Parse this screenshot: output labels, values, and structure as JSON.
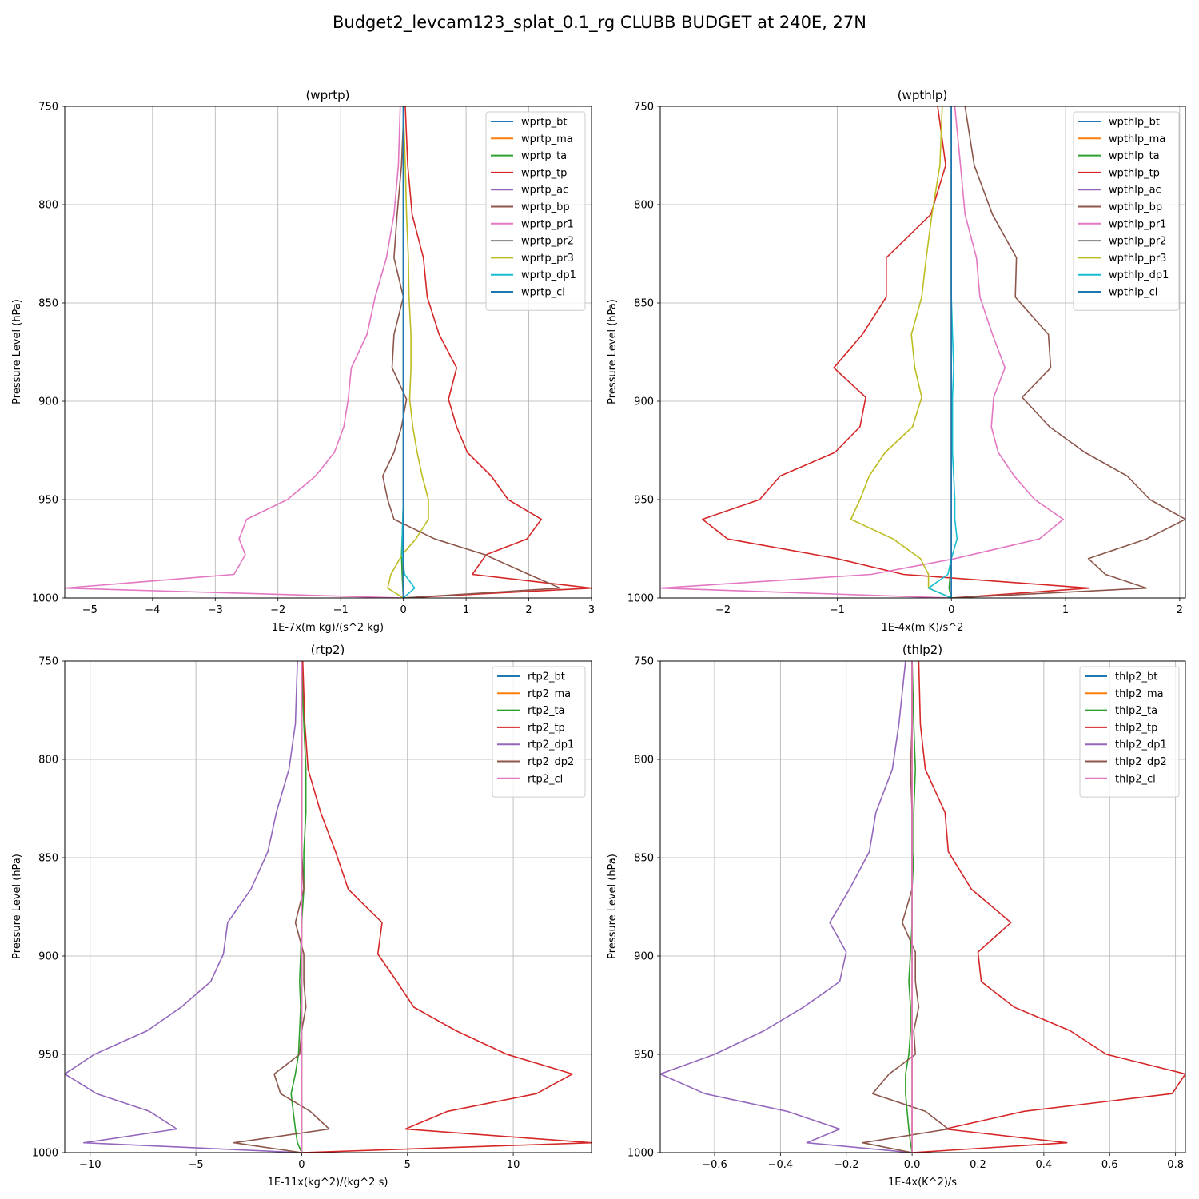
{
  "figure": {
    "title": "Budget2_levcam123_splat_0.1_rg CLUBB BUDGET at 240E, 27N"
  },
  "chart_data": [
    {
      "type": "line",
      "title": "(wprtp)",
      "xlabel": "1E-7x(m kg)/(s^2 kg)",
      "ylabel": "Pressure Level (hPa)",
      "xlim": [
        -5.4,
        3.0
      ],
      "ylim": [
        1000,
        750
      ],
      "xticks": [
        -5,
        -4,
        -3,
        -2,
        -1,
        0,
        1,
        2,
        3
      ],
      "xtick_labels": [
        "−5",
        "−4",
        "−3",
        "−2",
        "−1",
        "0",
        "1",
        "2",
        "3"
      ],
      "yticks": [
        750,
        800,
        850,
        900,
        950,
        1000
      ],
      "ytick_labels": [
        "750",
        "800",
        "850",
        "900",
        "950",
        "1000"
      ],
      "grid": true,
      "legend_loc": "upper right",
      "pressure_levels": [
        750,
        780,
        805,
        827,
        847,
        866,
        883,
        899,
        913,
        926,
        938,
        950,
        960,
        970,
        978,
        988,
        995,
        1000
      ],
      "series": [
        {
          "name": "wprtp_bt",
          "color": "#1f77b4",
          "values": [
            0,
            0,
            0,
            0,
            0,
            0,
            0,
            0,
            0,
            0,
            0,
            0,
            0,
            0,
            0,
            0,
            0,
            0
          ]
        },
        {
          "name": "wprtp_ma",
          "color": "#ff7f0e",
          "values": [
            0,
            0,
            0,
            0,
            0,
            0,
            0,
            0,
            0,
            0,
            0,
            0,
            0,
            0,
            0,
            0,
            0,
            0
          ]
        },
        {
          "name": "wprtp_ta",
          "color": "#2ca02c",
          "values": [
            0,
            0,
            0,
            0,
            0,
            0,
            0,
            0,
            0,
            0,
            0,
            0,
            -0.01,
            -0.02,
            -0.03,
            -0.02,
            -0.01,
            0
          ]
        },
        {
          "name": "wprtp_tp",
          "color": "#d62728",
          "values": [
            0.03,
            0.07,
            0.14,
            0.32,
            0.38,
            0.57,
            0.85,
            0.72,
            0.85,
            1.02,
            1.4,
            1.67,
            2.2,
            1.97,
            1.32,
            1.1,
            3.0,
            0
          ]
        },
        {
          "name": "wprtp_ac",
          "color": "#9467bd",
          "values": [
            0,
            0,
            0,
            0,
            0,
            0,
            0,
            0,
            0,
            0,
            0,
            0,
            0,
            0,
            0,
            0,
            0,
            0
          ]
        },
        {
          "name": "wprtp_bp",
          "color": "#8c564b",
          "values": [
            0.01,
            -0.03,
            -0.1,
            -0.15,
            0,
            -0.15,
            -0.18,
            0.05,
            -0.03,
            -0.15,
            -0.33,
            -0.25,
            -0.15,
            0.5,
            1.3,
            2.0,
            2.5,
            0
          ]
        },
        {
          "name": "wprtp_pr1",
          "color": "#e377c2",
          "values": [
            -0.05,
            -0.08,
            -0.15,
            -0.27,
            -0.45,
            -0.58,
            -0.83,
            -0.88,
            -0.95,
            -1.1,
            -1.4,
            -1.85,
            -2.5,
            -2.62,
            -2.52,
            -2.7,
            -5.4,
            0
          ]
        },
        {
          "name": "wprtp_pr2",
          "color": "#7f7f7f",
          "values": [
            0,
            0,
            0,
            0,
            0,
            0,
            0,
            0,
            0,
            0,
            0,
            0,
            0,
            0,
            0,
            0,
            0,
            0
          ]
        },
        {
          "name": "wprtp_pr3",
          "color": "#bcbd22",
          "values": [
            0,
            0.03,
            0.05,
            0.08,
            0.09,
            0.12,
            0.12,
            0.1,
            0.15,
            0.22,
            0.3,
            0.4,
            0.4,
            0.2,
            -0.02,
            -0.2,
            -0.25,
            0
          ]
        },
        {
          "name": "wprtp_dp1",
          "color": "#17becf",
          "values": [
            0,
            0,
            0,
            0,
            0,
            0,
            0,
            0,
            0,
            0,
            0,
            0,
            -0.01,
            -0.02,
            -0.02,
            0.02,
            0.18,
            0
          ]
        },
        {
          "name": "wprtp_cl",
          "color": "#1f77b4",
          "values": [
            0,
            0,
            0,
            0,
            0,
            0,
            0,
            0,
            0,
            0,
            0,
            0,
            0,
            0,
            0,
            0,
            0,
            0
          ]
        }
      ]
    },
    {
      "type": "line",
      "title": "(wpthlp)",
      "xlabel": "1E-4x(m K)/s^2",
      "ylabel": "Pressure Level (hPa)",
      "xlim": [
        -2.55,
        2.05
      ],
      "ylim": [
        1000,
        750
      ],
      "xticks": [
        -2,
        -1,
        0,
        1,
        2
      ],
      "xtick_labels": [
        "−2",
        "−1",
        "0",
        "1",
        "2"
      ],
      "yticks": [
        750,
        800,
        850,
        900,
        950,
        1000
      ],
      "ytick_labels": [
        "750",
        "800",
        "850",
        "900",
        "950",
        "1000"
      ],
      "grid": true,
      "legend_loc": "upper right",
      "pressure_levels": [
        750,
        780,
        805,
        827,
        847,
        866,
        883,
        898,
        913,
        926,
        938,
        950,
        960,
        970,
        980,
        988,
        995,
        1000
      ],
      "series": [
        {
          "name": "wpthlp_bt",
          "color": "#1f77b4",
          "values": [
            0,
            0,
            0,
            0,
            0,
            0,
            0,
            0,
            0,
            0,
            0,
            0,
            0,
            0,
            0,
            0,
            0,
            0
          ]
        },
        {
          "name": "wpthlp_ma",
          "color": "#ff7f0e",
          "values": [
            0,
            0,
            0,
            0,
            0,
            0,
            0,
            0,
            0,
            0,
            0,
            0,
            0,
            0,
            0,
            0,
            0,
            0
          ]
        },
        {
          "name": "wpthlp_ta",
          "color": "#2ca02c",
          "values": [
            0,
            0,
            0,
            0,
            0,
            0,
            0,
            0,
            0,
            0,
            0,
            0,
            0,
            0,
            0,
            -0.01,
            -0.02,
            0
          ]
        },
        {
          "name": "wpthlp_tp",
          "color": "#d62728",
          "values": [
            -0.12,
            -0.05,
            -0.18,
            -0.57,
            -0.57,
            -0.78,
            -1.03,
            -0.75,
            -0.8,
            -1.02,
            -1.5,
            -1.68,
            -2.18,
            -1.96,
            -1.0,
            -0.42,
            1.21,
            0
          ]
        },
        {
          "name": "wpthlp_ac",
          "color": "#9467bd",
          "values": [
            0,
            0,
            0,
            0,
            0,
            0,
            0,
            0,
            0,
            0,
            0,
            0,
            0,
            0,
            0,
            0,
            0,
            0
          ]
        },
        {
          "name": "wpthlp_bp",
          "color": "#8c564b",
          "values": [
            0.12,
            0.2,
            0.36,
            0.57,
            0.56,
            0.85,
            0.87,
            0.62,
            0.86,
            1.17,
            1.54,
            1.74,
            2.05,
            1.71,
            1.2,
            1.35,
            1.71,
            0
          ]
        },
        {
          "name": "wpthlp_pr1",
          "color": "#e377c2",
          "values": [
            0.03,
            0.08,
            0.12,
            0.22,
            0.25,
            0.36,
            0.47,
            0.37,
            0.35,
            0.41,
            0.55,
            0.73,
            0.98,
            0.77,
            0.03,
            -0.7,
            -2.55,
            0
          ]
        },
        {
          "name": "wpthlp_pr2",
          "color": "#7f7f7f",
          "values": [
            0,
            0,
            0,
            0,
            0,
            0,
            0,
            0,
            0,
            0,
            0,
            0,
            0,
            0,
            0,
            0,
            0,
            0
          ]
        },
        {
          "name": "wpthlp_pr3",
          "color": "#bcbd22",
          "values": [
            -0.08,
            -0.1,
            -0.17,
            -0.22,
            -0.26,
            -0.35,
            -0.32,
            -0.26,
            -0.34,
            -0.58,
            -0.72,
            -0.8,
            -0.88,
            -0.51,
            -0.27,
            -0.2,
            -0.2,
            0
          ]
        },
        {
          "name": "wpthlp_dp1",
          "color": "#17becf",
          "values": [
            0,
            0,
            0,
            0,
            0,
            0.01,
            0.02,
            0.01,
            0.01,
            0.01,
            0.02,
            0.03,
            0.03,
            0.05,
            0,
            -0.03,
            -0.2,
            0
          ]
        },
        {
          "name": "wpthlp_cl",
          "color": "#1f77b4",
          "values": [
            0,
            0,
            0,
            0,
            0,
            0,
            0,
            0,
            0,
            0,
            0,
            0,
            0,
            0,
            0,
            0,
            0,
            0
          ]
        }
      ]
    },
    {
      "type": "line",
      "title": "(rtp2)",
      "xlabel": "1E-11x(kg^2)/(kg^2 s)",
      "ylabel": "Pressure Level (hPa)",
      "xlim": [
        -11.2,
        13.7
      ],
      "ylim": [
        1000,
        750
      ],
      "xticks": [
        -10,
        -5,
        0,
        5,
        10
      ],
      "xtick_labels": [
        "−10",
        "−5",
        "0",
        "5",
        "10"
      ],
      "yticks": [
        750,
        800,
        850,
        900,
        950,
        1000
      ],
      "ytick_labels": [
        "750",
        "800",
        "850",
        "900",
        "950",
        "1000"
      ],
      "grid": true,
      "legend_loc": "upper right",
      "pressure_levels": [
        750,
        782,
        805,
        827,
        847,
        866,
        883,
        899,
        913,
        926,
        938,
        950,
        960,
        970,
        979,
        988,
        995,
        1000
      ],
      "series": [
        {
          "name": "rtp2_bt",
          "color": "#1f77b4",
          "values": [
            0,
            0,
            0,
            0,
            0,
            0,
            0,
            0,
            0,
            0,
            0,
            0,
            0,
            0,
            0,
            0,
            0,
            0
          ]
        },
        {
          "name": "rtp2_ma",
          "color": "#ff7f0e",
          "values": [
            0,
            0,
            0,
            0,
            0,
            0,
            0,
            0,
            0,
            0,
            0,
            0,
            0,
            0,
            0,
            0,
            0,
            0
          ]
        },
        {
          "name": "rtp2_ta",
          "color": "#2ca02c",
          "values": [
            0,
            0.1,
            0.2,
            0.2,
            0.1,
            0.1,
            0,
            -0.05,
            -0.1,
            -0.05,
            -0.1,
            -0.15,
            -0.3,
            -0.5,
            -0.4,
            -0.3,
            -0.2,
            0
          ]
        },
        {
          "name": "rtp2_tp",
          "color": "#d62728",
          "values": [
            0.05,
            0.15,
            0.3,
            0.9,
            1.6,
            2.2,
            3.8,
            3.6,
            4.5,
            5.3,
            7.3,
            9.7,
            12.8,
            11.1,
            6.9,
            4.9,
            13.7,
            0
          ]
        },
        {
          "name": "rtp2_dp1",
          "color": "#9467bd",
          "values": [
            -0.2,
            -0.3,
            -0.6,
            -1.2,
            -1.6,
            -2.4,
            -3.5,
            -3.7,
            -4.3,
            -5.7,
            -7.3,
            -9.8,
            -11.2,
            -9.7,
            -7.2,
            -5.9,
            -10.3,
            0
          ]
        },
        {
          "name": "rtp2_dp2",
          "color": "#8c564b",
          "values": [
            0,
            0,
            0,
            0,
            0,
            0.1,
            -0.3,
            0.1,
            0.1,
            0.2,
            0,
            -0.1,
            -1.3,
            -1.0,
            0.4,
            1.3,
            -3.2,
            0
          ]
        },
        {
          "name": "rtp2_cl",
          "color": "#e377c2",
          "values": [
            0,
            0,
            0,
            0,
            0,
            0,
            0,
            0,
            0,
            0,
            0,
            0,
            0,
            0,
            0,
            0,
            0,
            0
          ]
        }
      ]
    },
    {
      "type": "line",
      "title": "(thlp2)",
      "xlabel": "1E-4x(K^2)/s",
      "ylabel": "Pressure Level (hPa)",
      "xlim": [
        -0.765,
        0.83
      ],
      "ylim": [
        1000,
        750
      ],
      "xticks": [
        -0.6,
        -0.4,
        -0.2,
        0,
        0.2,
        0.4,
        0.6,
        0.8
      ],
      "xtick_labels": [
        "−0.6",
        "−0.4",
        "−0.2",
        "0.0",
        "0.2",
        "0.4",
        "0.6",
        "0.8"
      ],
      "yticks": [
        750,
        800,
        850,
        900,
        950,
        1000
      ],
      "ytick_labels": [
        "750",
        "800",
        "850",
        "900",
        "950",
        "1000"
      ],
      "grid": true,
      "legend_loc": "upper right",
      "pressure_levels": [
        750,
        782,
        805,
        827,
        847,
        866,
        883,
        898,
        913,
        926,
        938,
        950,
        960,
        970,
        979,
        988,
        995,
        1000
      ],
      "series": [
        {
          "name": "thlp2_bt",
          "color": "#1f77b4",
          "values": [
            0,
            0,
            0,
            0,
            0,
            0,
            0,
            0,
            0,
            0,
            0,
            0,
            0,
            0,
            0,
            0,
            0,
            0
          ]
        },
        {
          "name": "thlp2_ma",
          "color": "#ff7f0e",
          "values": [
            0,
            0,
            0,
            0,
            0,
            0,
            0,
            0,
            0,
            0,
            0,
            0,
            0,
            0,
            0,
            0,
            0,
            0
          ]
        },
        {
          "name": "thlp2_ta",
          "color": "#2ca02c",
          "values": [
            0,
            0.005,
            0.01,
            0.005,
            0.005,
            0,
            0,
            -0.005,
            -0.01,
            -0.005,
            -0.005,
            -0.01,
            -0.02,
            -0.02,
            -0.015,
            -0.01,
            -0.005,
            0
          ]
        },
        {
          "name": "thlp2_tp",
          "color": "#d62728",
          "values": [
            0.02,
            0.025,
            0.04,
            0.1,
            0.11,
            0.18,
            0.3,
            0.2,
            0.21,
            0.31,
            0.48,
            0.59,
            0.83,
            0.79,
            0.34,
            0.1,
            0.47,
            0
          ]
        },
        {
          "name": "thlp2_dp1",
          "color": "#9467bd",
          "values": [
            -0.02,
            -0.04,
            -0.06,
            -0.11,
            -0.13,
            -0.19,
            -0.25,
            -0.2,
            -0.22,
            -0.33,
            -0.45,
            -0.6,
            -0.765,
            -0.63,
            -0.38,
            -0.22,
            -0.32,
            0
          ]
        },
        {
          "name": "thlp2_dp2",
          "color": "#8c564b",
          "values": [
            0,
            0,
            -0.005,
            0,
            0,
            0,
            -0.03,
            0.01,
            0.01,
            0.02,
            0.005,
            0.01,
            -0.07,
            -0.12,
            0.04,
            0.11,
            -0.15,
            0
          ]
        },
        {
          "name": "thlp2_cl",
          "color": "#e377c2",
          "values": [
            0,
            0,
            0,
            0,
            0,
            0,
            0,
            0,
            0,
            0,
            0,
            0,
            0,
            0,
            0,
            0,
            0,
            0
          ]
        }
      ]
    }
  ]
}
